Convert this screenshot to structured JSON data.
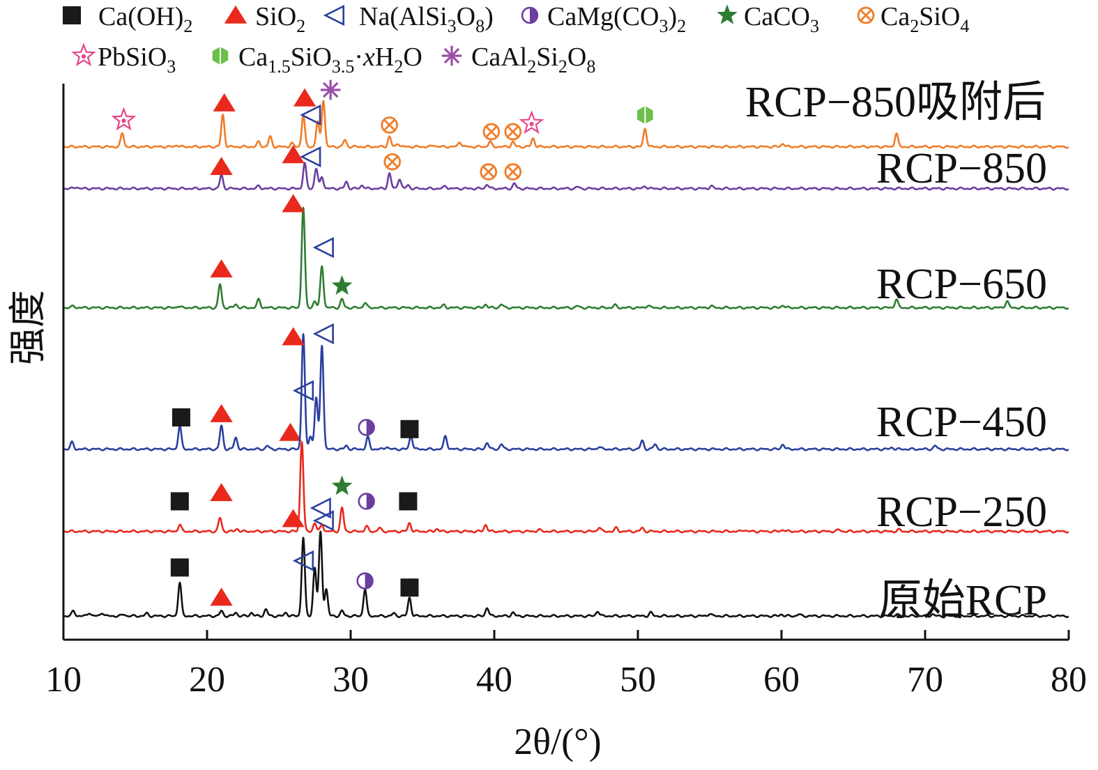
{
  "chart_data": {
    "type": "line",
    "xlabel": "2θ/(°)",
    "ylabel": "强度",
    "xlim": [
      10,
      80
    ],
    "x_ticks": [
      "10",
      "20",
      "30",
      "40",
      "50",
      "60",
      "70",
      "80"
    ],
    "grid": false,
    "legend_position": "top",
    "legend": [
      {
        "key": "ca_oh2",
        "label": "Ca(OH)2",
        "parts": [
          [
            "Ca(OH)",
            ""
          ],
          [
            "2",
            "sub"
          ]
        ],
        "marker": "square",
        "color": "#1a1a1a"
      },
      {
        "key": "sio2",
        "label": "SiO2",
        "parts": [
          [
            "SiO",
            ""
          ],
          [
            "2",
            "sub"
          ]
        ],
        "marker": "triangle",
        "color": "#e8291c"
      },
      {
        "key": "albite",
        "label": "Na(AlSi3O8)",
        "parts": [
          [
            "Na(AlSi",
            ""
          ],
          [
            "3",
            "sub"
          ],
          [
            "O",
            ""
          ],
          [
            "8",
            "sub"
          ],
          [
            ")",
            ""
          ]
        ],
        "marker": "left-triangle",
        "color": "#2b3f9e"
      },
      {
        "key": "dolomite",
        "label": "CaMg(CO3)2",
        "parts": [
          [
            "CaMg(CO",
            ""
          ],
          [
            "3",
            "sub"
          ],
          [
            ")",
            ""
          ],
          [
            "2",
            "sub"
          ]
        ],
        "marker": "half-circle",
        "color": "#6a3fa0"
      },
      {
        "key": "calcite",
        "label": "CaCO3",
        "parts": [
          [
            "CaCO",
            ""
          ],
          [
            "3",
            "sub"
          ]
        ],
        "marker": "star",
        "color": "#2e7d32"
      },
      {
        "key": "ca2sio4",
        "label": "Ca2SiO4",
        "parts": [
          [
            "Ca",
            ""
          ],
          [
            "2",
            "sub"
          ],
          [
            "SiO",
            ""
          ],
          [
            "4",
            "sub"
          ]
        ],
        "marker": "crossed-circle",
        "color": "#f07c28"
      },
      {
        "key": "pbsio3",
        "label": "PbSiO3",
        "parts": [
          [
            "PbSiO",
            ""
          ],
          [
            "3",
            "sub"
          ]
        ],
        "marker": "pink-star",
        "color": "#e8458b"
      },
      {
        "key": "csh",
        "label": "Ca1.5SiO3.5·xH2O",
        "parts": [
          [
            "Ca",
            ""
          ],
          [
            "1.5",
            "sub"
          ],
          [
            "SiO",
            ""
          ],
          [
            "3.5",
            "sub"
          ],
          [
            "·",
            ""
          ],
          [
            "x",
            "it"
          ],
          [
            "H",
            ""
          ],
          [
            "2",
            "sub"
          ],
          [
            "O",
            ""
          ]
        ],
        "marker": "hexagon",
        "color": "#6cc04a"
      },
      {
        "key": "anorthite",
        "label": "CaAl2Si2O8",
        "parts": [
          [
            "CaAl",
            ""
          ],
          [
            "2",
            "sub"
          ],
          [
            "Si",
            ""
          ],
          [
            "2",
            "sub"
          ],
          [
            "O",
            ""
          ],
          [
            "8",
            "sub"
          ]
        ],
        "marker": "asterisk",
        "color": "#9b4fa8"
      }
    ],
    "series": [
      {
        "name": "原始RCP",
        "color": "#111111",
        "baseline": 0.05,
        "peaks": [
          [
            10.7,
            0.03
          ],
          [
            11.8,
            0.02
          ],
          [
            12.7,
            0.02
          ],
          [
            14.2,
            0.01
          ],
          [
            15.8,
            0.015
          ],
          [
            18.1,
            0.2
          ],
          [
            21.0,
            0.03
          ],
          [
            22.0,
            0.02
          ],
          [
            23.1,
            0.02
          ],
          [
            24.1,
            0.04
          ],
          [
            25.5,
            0.02
          ],
          [
            26.7,
            0.47
          ],
          [
            27.5,
            0.29
          ],
          [
            27.9,
            0.5
          ],
          [
            28.3,
            0.16
          ],
          [
            29.4,
            0.03
          ],
          [
            31.0,
            0.16
          ],
          [
            33.0,
            0.015
          ],
          [
            34.1,
            0.11
          ],
          [
            39.5,
            0.05
          ],
          [
            41.3,
            0.02
          ],
          [
            47.2,
            0.03
          ],
          [
            50.9,
            0.02
          ],
          [
            55.0,
            0.015
          ],
          [
            60.0,
            0.01
          ],
          [
            61.2,
            0.01
          ],
          [
            68.0,
            0.01
          ],
          [
            70.5,
            0.01
          ]
        ],
        "markers": [
          [
            "ca_oh2",
            18.1,
            0.34
          ],
          [
            "sio2",
            21.0,
            0.16
          ],
          [
            "sio2",
            26.0,
            0.63
          ],
          [
            "albite",
            26.8,
            0.38
          ],
          [
            "albite",
            28.2,
            0.62
          ],
          [
            "dolomite",
            31.0,
            0.26
          ],
          [
            "ca_oh2",
            34.1,
            0.22
          ]
        ]
      },
      {
        "name": "RCP−250",
        "color": "#e8291c",
        "baseline": 0.01,
        "peaks": [
          [
            18.1,
            0.04
          ],
          [
            20.9,
            0.08
          ],
          [
            22.1,
            0.015
          ],
          [
            26.6,
            0.54
          ],
          [
            27.5,
            0.05
          ],
          [
            28.0,
            0.04
          ],
          [
            29.4,
            0.14
          ],
          [
            31.1,
            0.03
          ],
          [
            32.0,
            0.02
          ],
          [
            34.1,
            0.05
          ],
          [
            36.0,
            0.015
          ],
          [
            39.4,
            0.04
          ],
          [
            43.1,
            0.01
          ],
          [
            47.3,
            0.025
          ],
          [
            48.5,
            0.02
          ],
          [
            50.3,
            0.02
          ],
          [
            57.4,
            0.01
          ],
          [
            60.1,
            0.01
          ],
          [
            64.0,
            0.01
          ],
          [
            68.2,
            0.01
          ]
        ],
        "markers": [
          [
            "ca_oh2",
            18.1,
            0.19
          ],
          [
            "sio2",
            21.0,
            0.24
          ],
          [
            "sio2",
            25.8,
            0.6
          ],
          [
            "calcite",
            29.4,
            0.28
          ],
          [
            "albite",
            28.0,
            0.15
          ],
          [
            "dolomite",
            31.1,
            0.19
          ],
          [
            "ca_oh2",
            34.0,
            0.19
          ]
        ]
      },
      {
        "name": "RCP−450",
        "color": "#2b3f9e",
        "baseline": 0.01,
        "peaks": [
          [
            10.6,
            0.04
          ],
          [
            18.1,
            0.14
          ],
          [
            21.0,
            0.14
          ],
          [
            22.0,
            0.07
          ],
          [
            24.2,
            0.02
          ],
          [
            26.7,
            0.69
          ],
          [
            27.2,
            0.08
          ],
          [
            27.6,
            0.31
          ],
          [
            28.0,
            0.62
          ],
          [
            29.7,
            0.02
          ],
          [
            31.2,
            0.07
          ],
          [
            32.5,
            0.015
          ],
          [
            34.2,
            0.08
          ],
          [
            36.6,
            0.08
          ],
          [
            39.5,
            0.04
          ],
          [
            40.5,
            0.03
          ],
          [
            47.3,
            0.015
          ],
          [
            50.3,
            0.05
          ],
          [
            51.2,
            0.03
          ],
          [
            60.1,
            0.03
          ],
          [
            67.7,
            0.01
          ],
          [
            70.7,
            0.02
          ]
        ],
        "markers": [
          [
            "ca_oh2",
            18.2,
            0.2
          ],
          [
            "sio2",
            21.0,
            0.22
          ],
          [
            "albite",
            26.8,
            0.36
          ],
          [
            "sio2",
            26.0,
            0.68
          ],
          [
            "albite",
            28.2,
            0.7
          ],
          [
            "dolomite",
            31.1,
            0.14
          ],
          [
            "ca_oh2",
            34.1,
            0.13
          ]
        ]
      },
      {
        "name": "RCP−650",
        "color": "#2e7d32",
        "baseline": 0.01,
        "peaks": [
          [
            10.7,
            0.01
          ],
          [
            18.0,
            0.01
          ],
          [
            20.9,
            0.14
          ],
          [
            22.0,
            0.02
          ],
          [
            23.6,
            0.05
          ],
          [
            26.7,
            0.6
          ],
          [
            27.5,
            0.04
          ],
          [
            28.0,
            0.25
          ],
          [
            29.4,
            0.05
          ],
          [
            31.0,
            0.03
          ],
          [
            36.5,
            0.015
          ],
          [
            39.4,
            0.02
          ],
          [
            40.5,
            0.02
          ],
          [
            45.8,
            0.01
          ],
          [
            48.4,
            0.015
          ],
          [
            50.7,
            0.015
          ],
          [
            55.1,
            0.01
          ],
          [
            60.1,
            0.015
          ],
          [
            68.0,
            0.05
          ],
          [
            75.7,
            0.04
          ]
        ],
        "markers": [
          [
            "sio2",
            21.0,
            0.24
          ],
          [
            "sio2",
            26.0,
            0.63
          ],
          [
            "albite",
            28.2,
            0.37
          ],
          [
            "calcite",
            29.4,
            0.14
          ]
        ]
      },
      {
        "name": "RCP−850",
        "color": "#6a3fa0",
        "baseline": 0.01,
        "peaks": [
          [
            10.9,
            0.01
          ],
          [
            21.0,
            0.08
          ],
          [
            23.6,
            0.015
          ],
          [
            26.8,
            0.15
          ],
          [
            27.6,
            0.12
          ],
          [
            28.0,
            0.07
          ],
          [
            29.7,
            0.04
          ],
          [
            30.8,
            0.02
          ],
          [
            32.7,
            0.09
          ],
          [
            33.4,
            0.06
          ],
          [
            34.0,
            0.02
          ],
          [
            36.6,
            0.015
          ],
          [
            39.5,
            0.025
          ],
          [
            41.4,
            0.03
          ],
          [
            45.8,
            0.01
          ],
          [
            50.5,
            0.015
          ],
          [
            55.1,
            0.015
          ]
        ],
        "markers": [
          [
            "sio2",
            21.0,
            0.14
          ],
          [
            "sio2",
            26.0,
            0.21
          ],
          [
            "albite",
            27.3,
            0.2
          ],
          [
            "ca2sio4",
            32.9,
            0.17
          ],
          [
            "ca2sio4",
            39.6,
            0.11
          ],
          [
            "ca2sio4",
            41.3,
            0.11
          ]
        ]
      },
      {
        "name": "RCP−850吸附后",
        "color": "#f07c28",
        "baseline": 0.01,
        "peaks": [
          [
            14.1,
            0.08
          ],
          [
            17.9,
            0.01
          ],
          [
            21.1,
            0.19
          ],
          [
            23.6,
            0.03
          ],
          [
            24.4,
            0.06
          ],
          [
            25.9,
            0.02
          ],
          [
            26.7,
            0.19
          ],
          [
            27.7,
            0.15
          ],
          [
            28.1,
            0.28
          ],
          [
            29.6,
            0.04
          ],
          [
            32.7,
            0.06
          ],
          [
            33.3,
            0.02
          ],
          [
            35.8,
            0.01
          ],
          [
            37.6,
            0.03
          ],
          [
            39.7,
            0.03
          ],
          [
            41.3,
            0.03
          ],
          [
            42.7,
            0.05
          ],
          [
            50.5,
            0.11
          ],
          [
            60.1,
            0.02
          ],
          [
            68.0,
            0.08
          ]
        ],
        "markers": [
          [
            "pbsio3",
            14.2,
            0.17
          ],
          [
            "sio2",
            21.2,
            0.27
          ],
          [
            "sio2",
            26.8,
            0.3
          ],
          [
            "albite",
            27.3,
            0.2
          ],
          [
            "anorthite",
            28.6,
            0.35
          ],
          [
            "ca2sio4",
            32.7,
            0.14
          ],
          [
            "ca2sio4",
            39.8,
            0.1
          ],
          [
            "ca2sio4",
            41.3,
            0.1
          ],
          [
            "pbsio3",
            42.6,
            0.15
          ],
          [
            "csh",
            50.5,
            0.2
          ]
        ]
      }
    ]
  }
}
